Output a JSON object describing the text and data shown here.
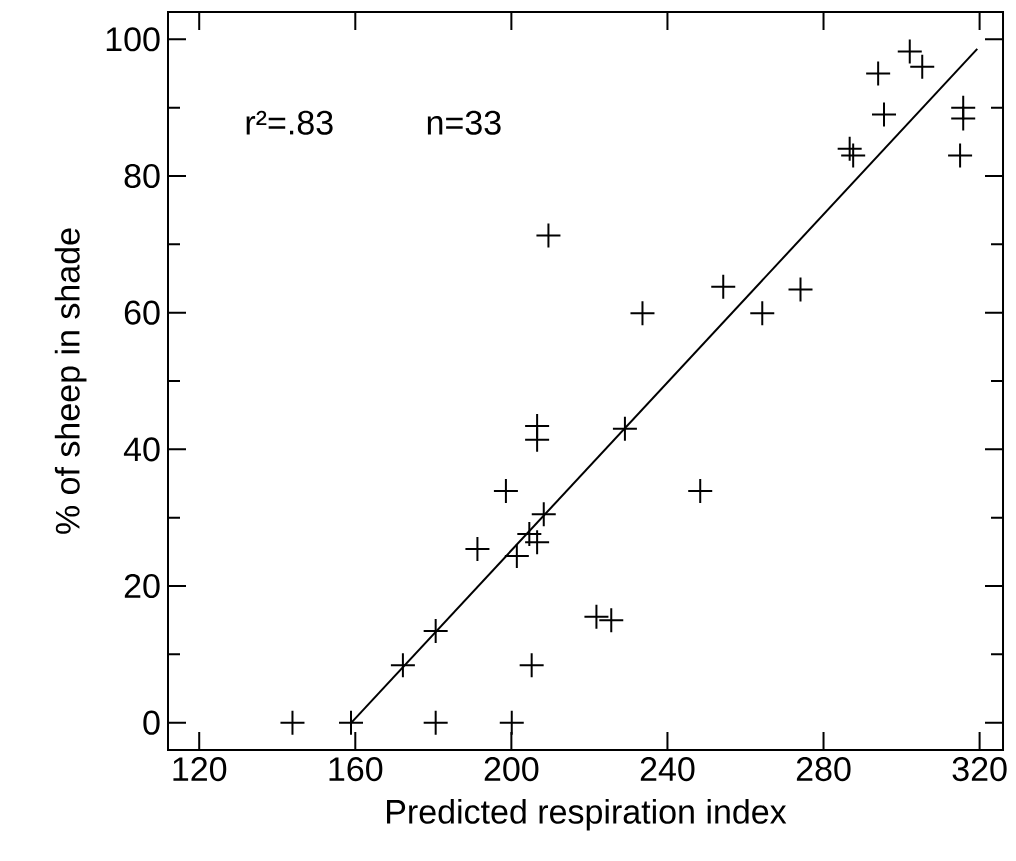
{
  "chart_data": {
    "type": "scatter",
    "xlabel": "Predicted respiration index",
    "ylabel": "% of sheep in shade",
    "annotations": [
      "r²=.83",
      "n=33"
    ],
    "xlim": [
      112,
      326
    ],
    "ylim": [
      -4,
      104
    ],
    "xticks": [
      120,
      160,
      200,
      240,
      280,
      320
    ],
    "yticks": [
      0,
      {
        "value": 10,
        "label": null
      },
      20,
      {
        "value": 30,
        "label": null
      },
      40,
      {
        "value": 50,
        "label": null
      },
      60,
      {
        "value": 70,
        "label": null
      },
      80,
      {
        "value": 90,
        "label": null
      },
      100
    ],
    "grid": false,
    "marker": "cross",
    "series": [
      {
        "color": "#000000",
        "x": [
          143.9,
          158.9,
          180.6,
          200.1,
          172.2,
          180.6,
          191.3,
          198.6,
          201.4,
          204.6,
          206.6,
          208.3,
          206.6,
          206.6,
          205.2,
          221.8,
          225.6,
          229.1,
          248.4,
          209.5,
          233.6,
          254.3,
          264.3,
          274.1,
          286.7,
          287.6,
          294.0,
          295.5,
          302.1,
          305.3,
          315.8,
          315.8,
          315.0
        ],
        "values": [
          0,
          0,
          0,
          0,
          8.4,
          13.4,
          25.4,
          33.9,
          24.4,
          27.6,
          26.4,
          30.5,
          43.4,
          41.4,
          8.4,
          15.5,
          15.0,
          43.0,
          33.9,
          71.3,
          59.9,
          63.8,
          59.9,
          63.4,
          84.0,
          83.0,
          95.0,
          89.0,
          98.2,
          96.0,
          90.0,
          88.4,
          83.0
        ]
      },
      {
        "type": "line",
        "color": "#000000",
        "marker": "none",
        "line_style": "solid",
        "x": [
          159,
          319.4
        ],
        "values": [
          0,
          98.6
        ]
      }
    ]
  }
}
